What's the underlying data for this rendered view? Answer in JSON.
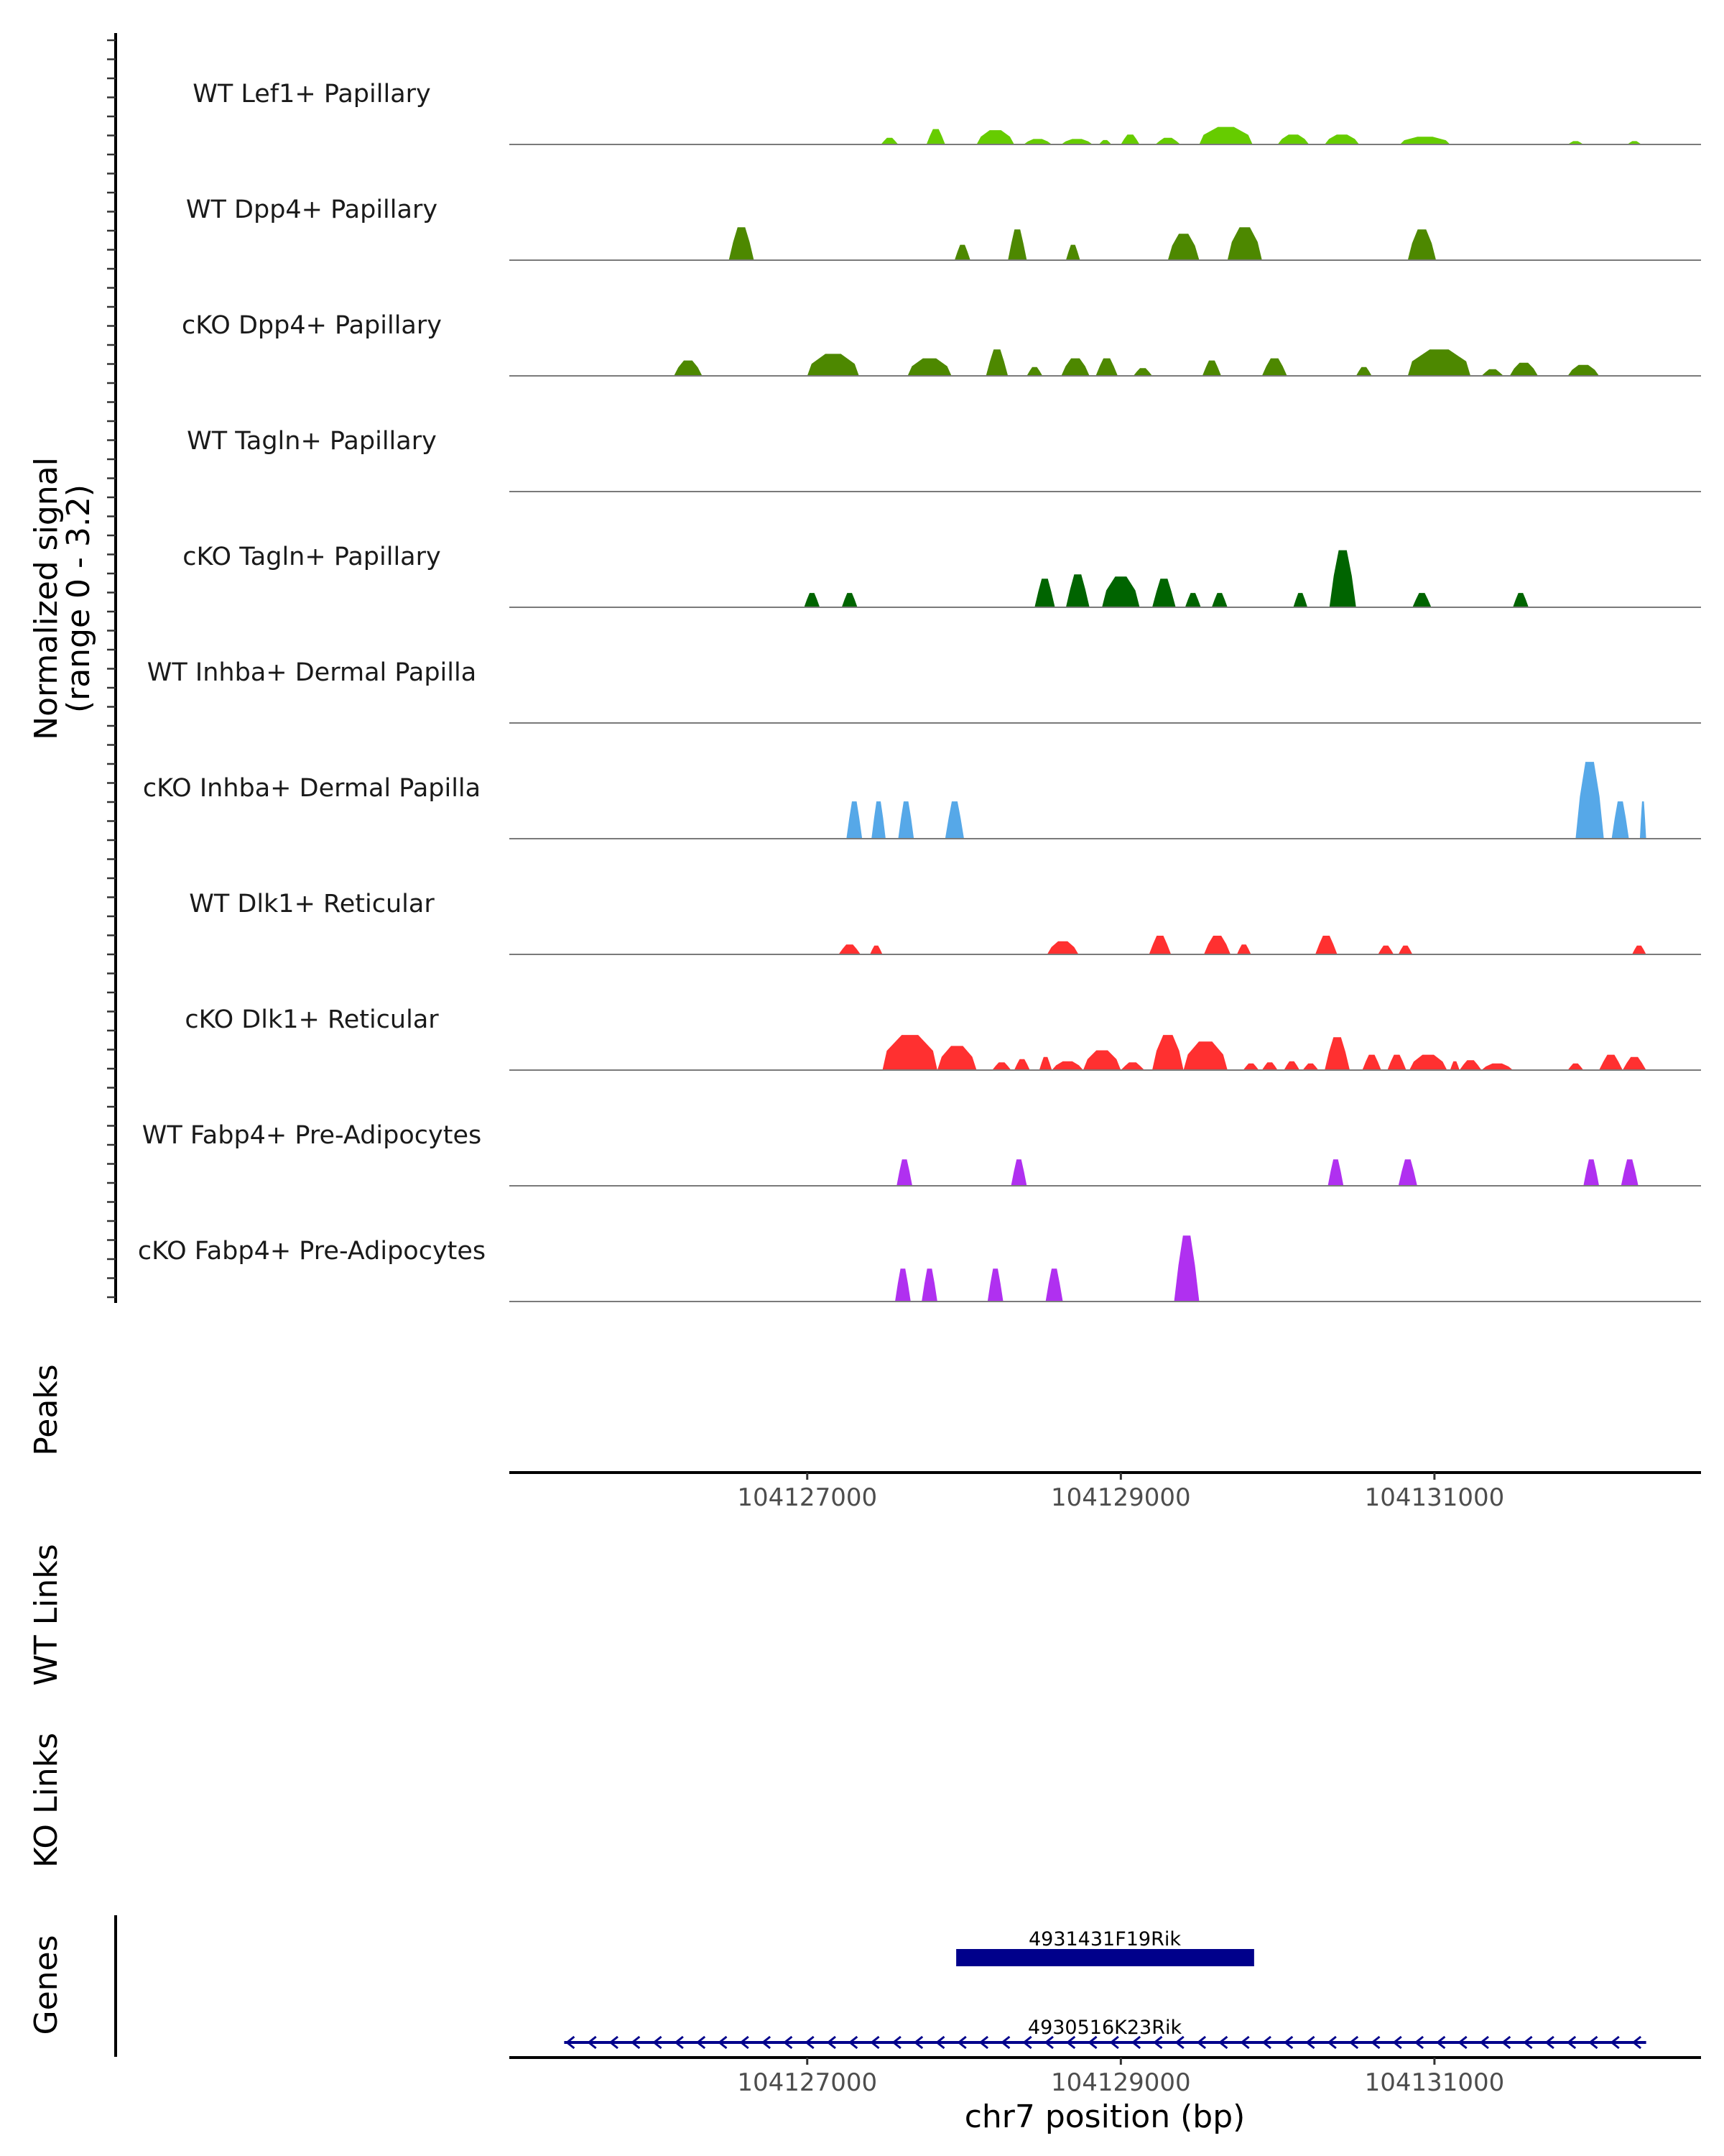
{
  "chart_data": {
    "type": "area",
    "chromosome": "chr7",
    "xlabel": "chr7 position (bp)",
    "xlim": [
      104125100,
      104132700
    ],
    "x_ticks": [
      104127000,
      104129000,
      104131000
    ],
    "x_tick_labels": [
      "104127000",
      "104129000",
      "104131000"
    ],
    "signal_axis_label_line1": "Normalized signal",
    "signal_axis_label_line2": "(range 0 - 3.2)",
    "ylim": [
      0,
      3.2
    ],
    "panel_labels": {
      "peaks": "Peaks",
      "wt_links": "WT Links",
      "ko_links": "KO Links",
      "genes": "Genes"
    },
    "series": [
      {
        "name": "WT Lef1+ Papillary",
        "color": "#66CC00",
        "peaks": [
          [
            104127470,
            104127580,
            0.6
          ],
          [
            104127760,
            104127880,
            1.4
          ],
          [
            104128080,
            104128320,
            1.3
          ],
          [
            104128380,
            104128560,
            0.5
          ],
          [
            104128620,
            104128820,
            0.5
          ],
          [
            104128860,
            104128940,
            0.4
          ],
          [
            104129000,
            104129120,
            0.9
          ],
          [
            104129220,
            104129380,
            0.6
          ],
          [
            104129500,
            104129840,
            1.6
          ],
          [
            104130000,
            104130200,
            0.9
          ],
          [
            104130300,
            104130520,
            0.9
          ],
          [
            104130780,
            104131100,
            0.7
          ],
          [
            104131850,
            104131950,
            0.3
          ],
          [
            104132230,
            104132320,
            0.3
          ]
        ]
      },
      {
        "name": "WT Dpp4+ Papillary",
        "color": "#4D8800",
        "peaks": [
          [
            104126500,
            104126660,
            3.0
          ],
          [
            104127940,
            104128040,
            1.4
          ],
          [
            104128280,
            104128400,
            2.8
          ],
          [
            104128650,
            104128740,
            1.4
          ],
          [
            104129300,
            104129500,
            2.4
          ],
          [
            104129680,
            104129900,
            3.0
          ],
          [
            104130830,
            104131010,
            2.8
          ]
        ]
      },
      {
        "name": "cKO Dpp4+ Papillary",
        "color": "#4D8800",
        "peaks": [
          [
            104126150,
            104126330,
            1.4
          ],
          [
            104127000,
            104127330,
            2.0
          ],
          [
            104127640,
            104127920,
            1.6
          ],
          [
            104128140,
            104128280,
            2.4
          ],
          [
            104128400,
            104128500,
            0.8
          ],
          [
            104128620,
            104128800,
            1.6
          ],
          [
            104128840,
            104128980,
            1.6
          ],
          [
            104129080,
            104129200,
            0.7
          ],
          [
            104129520,
            104129640,
            1.4
          ],
          [
            104129900,
            104130060,
            1.6
          ],
          [
            104130500,
            104130600,
            0.8
          ],
          [
            104130830,
            104131230,
            2.4
          ],
          [
            104131300,
            104131440,
            0.6
          ],
          [
            104131480,
            104131660,
            1.2
          ],
          [
            104131850,
            104132050,
            1.0
          ]
        ]
      },
      {
        "name": "WT Tagln+ Papillary",
        "color": "#006400",
        "peaks": []
      },
      {
        "name": "cKO Tagln+ Papillary",
        "color": "#006400",
        "peaks": [
          [
            104126980,
            104127080,
            1.3
          ],
          [
            104127220,
            104127320,
            1.3
          ],
          [
            104128450,
            104128580,
            2.6
          ],
          [
            104128650,
            104128800,
            3.0
          ],
          [
            104128880,
            104129120,
            2.8
          ],
          [
            104129200,
            104129350,
            2.6
          ],
          [
            104129410,
            104129510,
            1.3
          ],
          [
            104129580,
            104129680,
            1.3
          ],
          [
            104130100,
            104130190,
            1.3
          ],
          [
            104130330,
            104130500,
            5.2
          ],
          [
            104130860,
            104130980,
            1.3
          ],
          [
            104131500,
            104131600,
            1.3
          ]
        ]
      },
      {
        "name": "WT Inhba+ Dermal Papilla",
        "color": "#56A8E8",
        "peaks": []
      },
      {
        "name": "cKO Inhba+ Dermal Papilla",
        "color": "#56A8E8",
        "peaks": [
          [
            104127250,
            104127350,
            3.4
          ],
          [
            104127410,
            104127500,
            3.4
          ],
          [
            104127580,
            104127680,
            3.4
          ],
          [
            104127880,
            104128000,
            3.4
          ],
          [
            104131900,
            104132080,
            7.0
          ],
          [
            104132130,
            104132240,
            3.4
          ],
          [
            104132310,
            104132350,
            3.4
          ]
        ]
      },
      {
        "name": "WT Dlk1+ Reticular",
        "color": "#FF3030",
        "peaks": [
          [
            104127200,
            104127340,
            0.9
          ],
          [
            104127400,
            104127480,
            0.8
          ],
          [
            104128530,
            104128730,
            1.2
          ],
          [
            104129180,
            104129320,
            1.7
          ],
          [
            104129530,
            104129700,
            1.7
          ],
          [
            104129740,
            104129830,
            0.9
          ],
          [
            104130240,
            104130380,
            1.7
          ],
          [
            104130640,
            104130740,
            0.8
          ],
          [
            104130770,
            104130860,
            0.8
          ],
          [
            104132260,
            104132350,
            0.8
          ]
        ]
      },
      {
        "name": "cKO Dlk1+ Reticular",
        "color": "#FF3030",
        "peaks": [
          [
            104127480,
            104127830,
            3.2
          ],
          [
            104127830,
            104128080,
            2.2
          ],
          [
            104128180,
            104128300,
            0.7
          ],
          [
            104128320,
            104128420,
            1.0
          ],
          [
            104128480,
            104128560,
            1.2
          ],
          [
            104128560,
            104128760,
            0.8
          ],
          [
            104128760,
            104129000,
            1.8
          ],
          [
            104129000,
            104129150,
            0.7
          ],
          [
            104129200,
            104129400,
            3.2
          ],
          [
            104129400,
            104129680,
            2.6
          ],
          [
            104129780,
            104129880,
            0.6
          ],
          [
            104129900,
            104130000,
            0.7
          ],
          [
            104130040,
            104130140,
            0.8
          ],
          [
            104130160,
            104130260,
            0.6
          ],
          [
            104130300,
            104130460,
            3.0
          ],
          [
            104130540,
            104130660,
            1.4
          ],
          [
            104130700,
            104130820,
            1.4
          ],
          [
            104130840,
            104131080,
            1.4
          ],
          [
            104131100,
            104131160,
            0.8
          ],
          [
            104131160,
            104131300,
            0.9
          ],
          [
            104131300,
            104131500,
            0.6
          ],
          [
            104131850,
            104131950,
            0.6
          ],
          [
            104132050,
            104132200,
            1.4
          ],
          [
            104132200,
            104132350,
            1.2
          ]
        ]
      },
      {
        "name": "WT Fabp4+ Pre-Adipocytes",
        "color": "#B030F0",
        "peaks": [
          [
            104127570,
            104127670,
            2.4
          ],
          [
            104128300,
            104128400,
            2.4
          ],
          [
            104130320,
            104130420,
            2.4
          ],
          [
            104130770,
            104130890,
            2.4
          ],
          [
            104131950,
            104132050,
            2.4
          ],
          [
            104132190,
            104132300,
            2.4
          ]
        ]
      },
      {
        "name": "cKO Fabp4+ Pre-Adipocytes",
        "color": "#B030F0",
        "peaks": [
          [
            104127560,
            104127660,
            3.0
          ],
          [
            104127730,
            104127830,
            3.0
          ],
          [
            104128150,
            104128250,
            3.0
          ],
          [
            104128520,
            104128630,
            3.0
          ],
          [
            104129340,
            104129500,
            6.0
          ]
        ]
      }
    ],
    "genes": [
      {
        "name": "4931431F19Rik",
        "type": "block",
        "start": 104127950,
        "end": 104129850,
        "color": "#00008B"
      },
      {
        "name": "4930516K23Rik",
        "type": "strand",
        "strand": "-",
        "start": 104125450,
        "end": 104132350,
        "color": "#00008B"
      }
    ]
  }
}
